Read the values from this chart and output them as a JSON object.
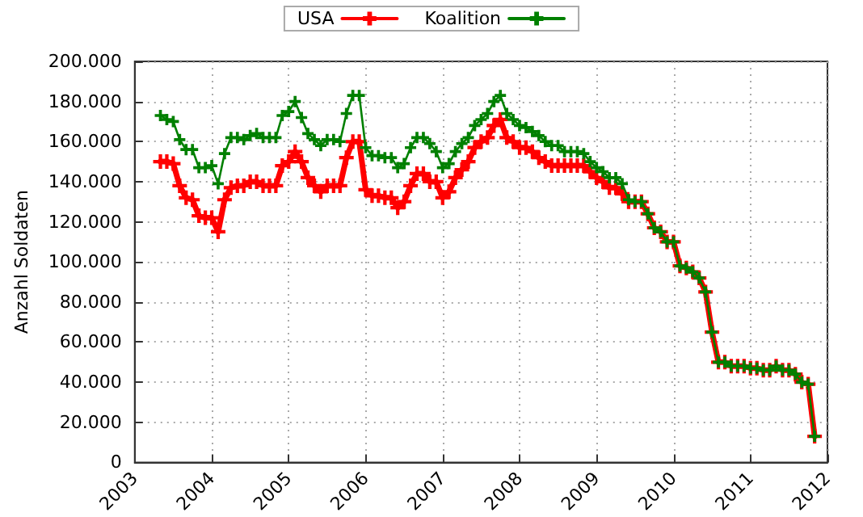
{
  "chart_data": {
    "type": "line",
    "ylabel": "Anzahl Soldaten",
    "legend": "top",
    "grid": true,
    "marker": "cross",
    "line_style": "solid",
    "x": [
      "2003-05",
      "2003-06",
      "2003-07",
      "2003-08",
      "2003-09",
      "2003-10",
      "2003-11",
      "2003-12",
      "2004-01",
      "2004-02",
      "2004-03",
      "2004-04",
      "2004-05",
      "2004-06",
      "2004-07",
      "2004-08",
      "2004-09",
      "2004-10",
      "2004-11",
      "2004-12",
      "2005-01",
      "2005-02",
      "2005-03",
      "2005-04",
      "2005-05",
      "2005-06",
      "2005-07",
      "2005-08",
      "2005-09",
      "2005-10",
      "2005-11",
      "2005-12",
      "2006-01",
      "2006-02",
      "2006-03",
      "2006-04",
      "2006-05",
      "2006-06",
      "2006-07",
      "2006-08",
      "2006-09",
      "2006-10",
      "2006-11",
      "2006-12",
      "2007-01",
      "2007-02",
      "2007-03",
      "2007-04",
      "2007-05",
      "2007-06",
      "2007-07",
      "2007-08",
      "2007-09",
      "2007-10",
      "2007-11",
      "2007-12",
      "2008-01",
      "2008-02",
      "2008-03",
      "2008-04",
      "2008-05",
      "2008-06",
      "2008-07",
      "2008-08",
      "2008-09",
      "2008-10",
      "2008-11",
      "2008-12",
      "2009-01",
      "2009-02",
      "2009-03",
      "2009-04",
      "2009-05",
      "2009-06",
      "2009-07",
      "2009-08",
      "2009-09",
      "2009-10",
      "2009-11",
      "2009-12",
      "2010-01",
      "2010-02",
      "2010-03",
      "2010-04",
      "2010-05",
      "2010-06",
      "2010-07",
      "2010-08",
      "2010-09",
      "2010-10",
      "2010-11",
      "2010-12",
      "2011-01",
      "2011-02",
      "2011-03",
      "2011-04",
      "2011-05",
      "2011-06",
      "2011-07",
      "2011-08",
      "2011-09",
      "2011-10",
      "2011-11"
    ],
    "series": [
      {
        "name": "USA",
        "color": "#ff0000",
        "values": [
          150000,
          150000,
          149000,
          138000,
          132000,
          131000,
          123000,
          122000,
          122000,
          115000,
          131000,
          137000,
          138000,
          138000,
          140000,
          140000,
          138000,
          138000,
          138000,
          148000,
          150000,
          155000,
          150000,
          142000,
          138000,
          135000,
          138000,
          138000,
          138000,
          152000,
          160000,
          160000,
          136000,
          133000,
          133000,
          132000,
          132000,
          127000,
          130000,
          138000,
          144000,
          144000,
          140000,
          140000,
          132000,
          135000,
          142000,
          146000,
          150000,
          157000,
          160000,
          162000,
          168000,
          171000,
          162000,
          160000,
          157000,
          157000,
          155000,
          152000,
          150000,
          148000,
          148000,
          148000,
          148000,
          148000,
          148000,
          145000,
          142000,
          140000,
          137000,
          137000,
          134000,
          130000,
          130000,
          130000,
          124000,
          117000,
          115000,
          110000,
          110000,
          98000,
          97000,
          95000,
          92000,
          85000,
          65000,
          50000,
          50000,
          48000,
          48000,
          48000,
          47000,
          47000,
          46000,
          46000,
          48000,
          46000,
          46000,
          44000,
          40000,
          39000,
          13000
        ]
      },
      {
        "name": "Koalition",
        "color": "#008000",
        "values": [
          173000,
          171000,
          170000,
          161000,
          156000,
          156000,
          147000,
          147000,
          148000,
          139000,
          154000,
          162000,
          162000,
          161000,
          163000,
          164000,
          162000,
          162000,
          162000,
          173000,
          175000,
          180000,
          172000,
          164000,
          161000,
          158000,
          161000,
          161000,
          160000,
          174000,
          183000,
          183000,
          157000,
          153000,
          153000,
          152000,
          152000,
          147000,
          149000,
          157000,
          162000,
          162000,
          159000,
          155000,
          147000,
          149000,
          155000,
          159000,
          162000,
          168000,
          171000,
          174000,
          180000,
          183000,
          174000,
          171000,
          168000,
          167000,
          165000,
          163000,
          160000,
          158000,
          158000,
          155000,
          155000,
          155000,
          154000,
          150000,
          147000,
          145000,
          142000,
          142000,
          139000,
          131000,
          130000,
          130000,
          124000,
          117000,
          115000,
          110000,
          110000,
          98000,
          97000,
          95000,
          92000,
          85000,
          65000,
          50000,
          50000,
          48000,
          48000,
          48000,
          47000,
          47000,
          46000,
          46000,
          48000,
          46000,
          46000,
          44000,
          40000,
          39000,
          13000
        ]
      }
    ],
    "xlim": [
      "2003",
      "2012"
    ],
    "xticks": [
      {
        "value": "2003",
        "label": "2003"
      },
      {
        "value": "2004",
        "label": "2004"
      },
      {
        "value": "2005",
        "label": "2005"
      },
      {
        "value": "2006",
        "label": "2006"
      },
      {
        "value": "2007",
        "label": "2007"
      },
      {
        "value": "2008",
        "label": "2008"
      },
      {
        "value": "2009",
        "label": "2009"
      },
      {
        "value": "2010",
        "label": "2010"
      },
      {
        "value": "2011",
        "label": "2011"
      },
      {
        "value": "2012",
        "label": "2012"
      }
    ],
    "ylim": [
      0,
      200000
    ],
    "yticks": [
      {
        "value": 0,
        "label": "0"
      },
      {
        "value": 20000,
        "label": "20.000"
      },
      {
        "value": 40000,
        "label": "40.000"
      },
      {
        "value": 60000,
        "label": "60.000"
      },
      {
        "value": 80000,
        "label": "80.000"
      },
      {
        "value": 100000,
        "label": "100.000"
      },
      {
        "value": 120000,
        "label": "120.000"
      },
      {
        "value": 140000,
        "label": "140.000"
      },
      {
        "value": 160000,
        "label": "160.000"
      },
      {
        "value": 180000,
        "label": "180.000"
      },
      {
        "value": 200000,
        "label": "200.000"
      }
    ]
  }
}
